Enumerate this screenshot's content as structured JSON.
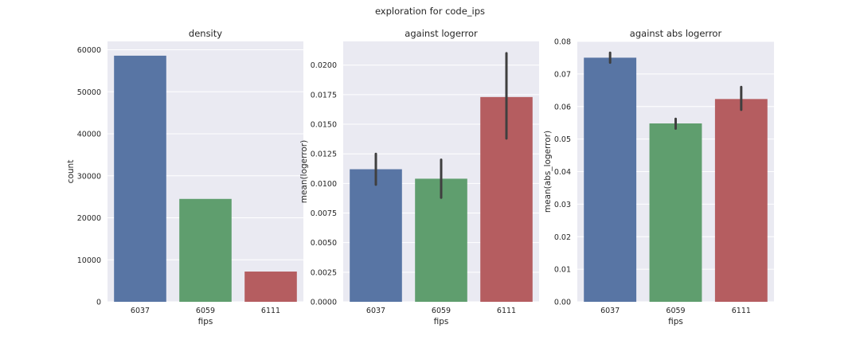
{
  "suptitle": "exploration for code_ips",
  "chart_data": [
    {
      "type": "bar",
      "title": "density",
      "xlabel": "fips",
      "ylabel": "count",
      "categories": [
        "6037",
        "6059",
        "6111"
      ],
      "values": [
        58600,
        24500,
        7200
      ],
      "ylim": [
        0,
        62000
      ],
      "yticks": [
        0,
        10000,
        20000,
        30000,
        40000,
        50000,
        60000
      ],
      "ytick_labels": [
        "0",
        "10000",
        "20000",
        "30000",
        "40000",
        "50000",
        "60000"
      ],
      "colors": [
        "#5875a4",
        "#5f9e6e",
        "#b55d60"
      ],
      "grid": "horizontal"
    },
    {
      "type": "bar",
      "title": "against logerror",
      "xlabel": "fips",
      "ylabel": "mean(logerror)",
      "categories": [
        "6037",
        "6059",
        "6111"
      ],
      "values": [
        0.0112,
        0.0104,
        0.0173
      ],
      "error_low": [
        0.0099,
        0.0088,
        0.0138
      ],
      "error_high": [
        0.0125,
        0.012,
        0.021
      ],
      "ylim": [
        0,
        0.022
      ],
      "yticks": [
        0,
        0.0025,
        0.005,
        0.0075,
        0.01,
        0.0125,
        0.015,
        0.0175,
        0.02
      ],
      "ytick_labels": [
        "0.0000",
        "0.0025",
        "0.0050",
        "0.0075",
        "0.0100",
        "0.0125",
        "0.0150",
        "0.0175",
        "0.0200"
      ],
      "colors": [
        "#5875a4",
        "#5f9e6e",
        "#b55d60"
      ],
      "grid": "horizontal"
    },
    {
      "type": "bar",
      "title": "against abs logerror",
      "xlabel": "fips",
      "ylabel": "mean(abs_logerror)",
      "categories": [
        "6037",
        "6059",
        "6111"
      ],
      "values": [
        0.075,
        0.0548,
        0.0623
      ],
      "error_low": [
        0.0735,
        0.0532,
        0.059
      ],
      "error_high": [
        0.0765,
        0.0562,
        0.066
      ],
      "ylim": [
        0,
        0.08
      ],
      "yticks": [
        0,
        0.01,
        0.02,
        0.03,
        0.04,
        0.05,
        0.06,
        0.07,
        0.08
      ],
      "ytick_labels": [
        "0.00",
        "0.01",
        "0.02",
        "0.03",
        "0.04",
        "0.05",
        "0.06",
        "0.07",
        "0.08"
      ],
      "colors": [
        "#5875a4",
        "#5f9e6e",
        "#b55d60"
      ],
      "grid": "horizontal"
    }
  ]
}
